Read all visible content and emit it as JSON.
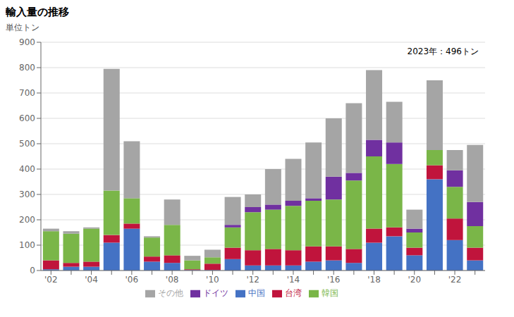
{
  "chart_data": {
    "type": "bar",
    "title": "輸入量の推移",
    "ylabel": "単位トン",
    "annotation": "2023年：496トン",
    "categories": [
      "'02",
      null,
      "'04",
      null,
      "'06",
      null,
      "'08",
      null,
      "'10",
      null,
      "'12",
      null,
      "'14",
      null,
      "'16",
      null,
      "'18",
      null,
      "'20",
      null,
      "'22",
      null
    ],
    "series": [
      {
        "name": "中国",
        "color": "#4472c4",
        "values": [
          5,
          15,
          15,
          110,
          165,
          35,
          30,
          2,
          2,
          45,
          20,
          20,
          20,
          35,
          40,
          30,
          110,
          135,
          60,
          360,
          120,
          40
        ]
      },
      {
        "name": "台湾",
        "color": "#c0143c",
        "values": [
          35,
          15,
          20,
          30,
          20,
          20,
          30,
          3,
          25,
          45,
          60,
          65,
          60,
          60,
          55,
          55,
          55,
          35,
          30,
          55,
          85,
          50
        ]
      },
      {
        "name": "韓国",
        "color": "#7ab648",
        "values": [
          115,
          115,
          130,
          175,
          100,
          75,
          120,
          35,
          25,
          80,
          150,
          155,
          175,
          180,
          185,
          270,
          285,
          250,
          60,
          60,
          125,
          85
        ]
      },
      {
        "name": "ドイツ",
        "color": "#7030a0",
        "values": [
          0,
          0,
          0,
          0,
          0,
          0,
          0,
          0,
          0,
          10,
          20,
          20,
          20,
          10,
          90,
          30,
          65,
          85,
          15,
          0,
          65,
          95
        ]
      },
      {
        "name": "その他",
        "color": "#a5a5a5",
        "values": [
          10,
          10,
          5,
          480,
          225,
          5,
          100,
          18,
          30,
          110,
          50,
          140,
          165,
          220,
          230,
          275,
          275,
          160,
          75,
          275,
          80,
          225
        ]
      }
    ],
    "stacked": true,
    "ylim": [
      0,
      900
    ],
    "yticks": [
      0,
      100,
      200,
      300,
      400,
      500,
      600,
      700,
      800,
      900
    ],
    "grid": true,
    "legend": "bottom"
  }
}
